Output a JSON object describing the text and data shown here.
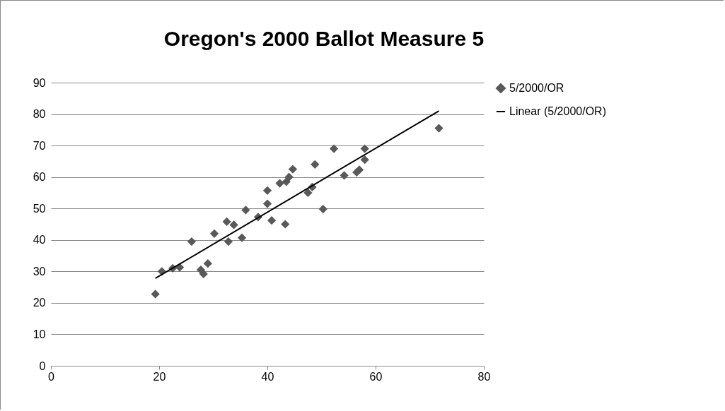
{
  "chart_data": {
    "type": "scatter",
    "title": "Oregon's 2000 Ballot Measure 5",
    "xlim": [
      0,
      80
    ],
    "xticks": [
      0,
      20,
      40,
      60,
      80
    ],
    "ylim": [
      0,
      90
    ],
    "yticks": [
      0,
      10,
      20,
      30,
      40,
      50,
      60,
      70,
      80,
      90
    ],
    "grid": "y",
    "legend": "right",
    "series": [
      {
        "name": "5/2000/OR",
        "color": "#595959",
        "marker": "diamond",
        "x": [
          19.3,
          20.5,
          22.5,
          23.8,
          26,
          27.7,
          28.2,
          29,
          30.2,
          32.5,
          32.8,
          33.8,
          35.3,
          36,
          38.3,
          40,
          40,
          40.8,
          42.3,
          43.3,
          43.5,
          44,
          44.7,
          47.5,
          48.3,
          48.8,
          50.3,
          52.3,
          54.2,
          56.5,
          57,
          58,
          58,
          71.7
        ],
        "values": [
          22.8,
          30,
          31,
          31.3,
          39.5,
          30.5,
          29.2,
          32.5,
          42,
          45.8,
          39.5,
          44.8,
          40.7,
          49.5,
          47.3,
          55.7,
          51.5,
          46.2,
          58,
          45,
          58.5,
          60,
          62.5,
          55,
          56.8,
          64,
          49.8,
          69,
          60.5,
          61.5,
          62.3,
          69,
          65.5,
          75.5
        ]
      },
      {
        "name": "Linear (5/2000/OR)",
        "type": "line",
        "marker": "none",
        "color": "#000000",
        "x": [
          19.3,
          71.7
        ],
        "values": [
          27.8,
          81
        ]
      }
    ]
  }
}
